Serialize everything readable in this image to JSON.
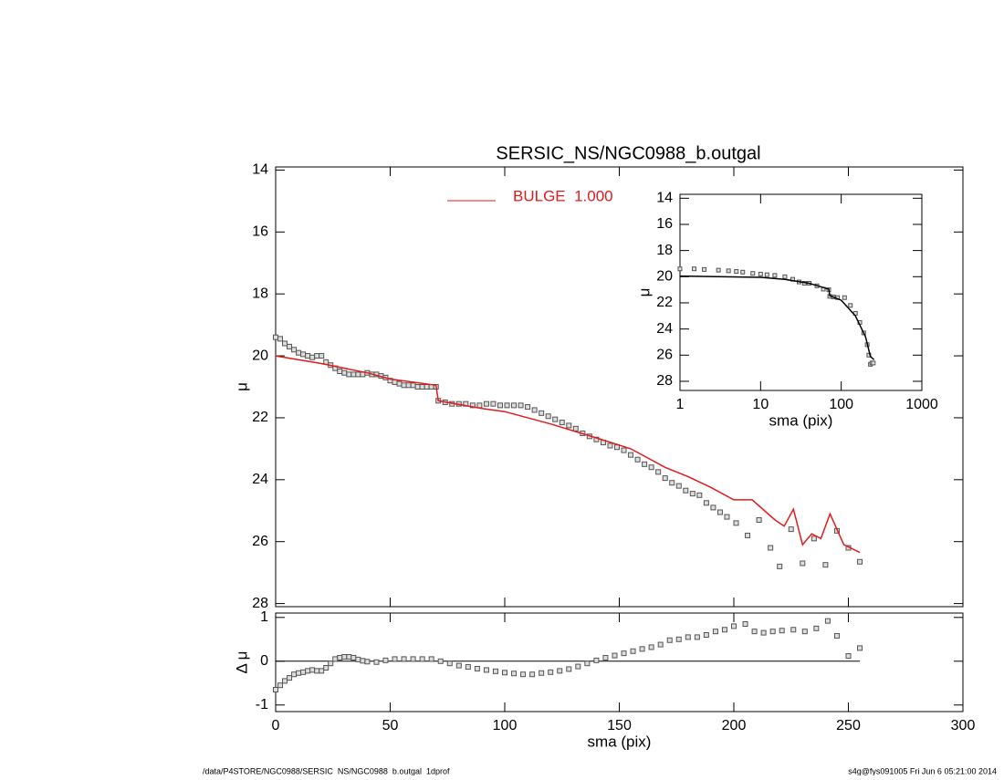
{
  "chart_data": [
    {
      "type": "scatter",
      "title": "SERSIC_NS/NGC0988_b.outgal",
      "ylabel": "μ",
      "xlim": [
        0,
        300
      ],
      "ylim": [
        13.9,
        28.1
      ],
      "yticks": [
        14,
        16,
        18,
        20,
        22,
        24,
        26,
        28
      ],
      "y_reversed": true,
      "legend": "top-center",
      "series": [
        {
          "style": "markers",
          "color": "#555555",
          "x": [
            0,
            2,
            4,
            6,
            8,
            10,
            12,
            14,
            16,
            18,
            20,
            22,
            24,
            26,
            28,
            30,
            32,
            34,
            36,
            38,
            40,
            42,
            44,
            46,
            48,
            50,
            52,
            54,
            56,
            58,
            60,
            62,
            64,
            66,
            68,
            70,
            71,
            74,
            77,
            80,
            83,
            86,
            89,
            92,
            95,
            98,
            101,
            104,
            107,
            110,
            113,
            116,
            119,
            122,
            125,
            128,
            131,
            134,
            137,
            140,
            143,
            146,
            149,
            152,
            155,
            158,
            161,
            164,
            167,
            170,
            173,
            176,
            179,
            182,
            185,
            188,
            191,
            194,
            197,
            201,
            206,
            211,
            216,
            220,
            225,
            230,
            235,
            240,
            245,
            250,
            255
          ],
          "values": [
            19.4,
            19.45,
            19.6,
            19.7,
            19.8,
            19.9,
            19.95,
            20.0,
            20.05,
            20.0,
            20.0,
            20.2,
            20.3,
            20.4,
            20.5,
            20.55,
            20.6,
            20.6,
            20.6,
            20.6,
            20.55,
            20.6,
            20.6,
            20.65,
            20.7,
            20.8,
            20.85,
            20.9,
            20.95,
            20.95,
            20.95,
            21.0,
            21.0,
            21.0,
            21.0,
            21.0,
            21.45,
            21.5,
            21.55,
            21.55,
            21.55,
            21.6,
            21.6,
            21.55,
            21.55,
            21.6,
            21.6,
            21.6,
            21.6,
            21.65,
            21.75,
            21.85,
            21.95,
            22.05,
            22.15,
            22.25,
            22.35,
            22.5,
            22.6,
            22.7,
            22.8,
            22.9,
            22.95,
            23.05,
            23.2,
            23.35,
            23.5,
            23.6,
            23.75,
            23.95,
            24.1,
            24.2,
            24.35,
            24.45,
            24.5,
            24.75,
            24.9,
            25.05,
            25.2,
            25.4,
            25.8,
            25.3,
            26.2,
            26.8,
            25.6,
            26.7,
            25.9,
            26.75,
            25.65,
            26.2,
            26.65
          ]
        },
        {
          "name": "BULGE  1.000",
          "style": "line",
          "color": "#e41a1c",
          "x": [
            0,
            20,
            40,
            50,
            70,
            71,
            90,
            100,
            120,
            140,
            155,
            170,
            180,
            190,
            200,
            208,
            218,
            222,
            226,
            230,
            234,
            238,
            242,
            248,
            255
          ],
          "values": [
            20.0,
            20.25,
            20.55,
            20.75,
            20.95,
            21.45,
            21.7,
            21.8,
            22.2,
            22.65,
            23.0,
            23.6,
            23.9,
            24.25,
            24.65,
            24.65,
            25.3,
            25.5,
            24.95,
            26.1,
            25.75,
            25.9,
            25.1,
            26.1,
            26.35
          ]
        }
      ]
    },
    {
      "type": "scatter",
      "xlabel": "sma (pix)",
      "ylabel": "Δ μ",
      "xlim": [
        0,
        300
      ],
      "xticks": [
        0,
        50,
        100,
        150,
        200,
        250,
        300
      ],
      "ylim": [
        -1.15,
        1.1
      ],
      "yticks": [
        -1,
        0,
        1
      ],
      "hline": {
        "y": 0,
        "x": [
          0,
          255
        ]
      },
      "series": [
        {
          "style": "markers",
          "color": "#555555",
          "x": [
            0,
            2,
            4,
            6,
            8,
            10,
            12,
            14,
            16,
            18,
            20,
            22,
            24,
            26,
            28,
            30,
            32,
            34,
            36,
            38,
            40,
            44,
            48,
            52,
            56,
            60,
            64,
            68,
            72,
            76,
            80,
            84,
            88,
            92,
            96,
            100,
            104,
            108,
            112,
            116,
            120,
            124,
            128,
            132,
            136,
            140,
            144,
            148,
            152,
            156,
            160,
            164,
            168,
            172,
            176,
            180,
            184,
            188,
            192,
            196,
            200,
            205,
            209,
            213,
            217,
            221,
            226,
            231,
            236,
            241,
            245,
            250,
            255
          ],
          "values": [
            -0.65,
            -0.55,
            -0.45,
            -0.38,
            -0.3,
            -0.27,
            -0.25,
            -0.22,
            -0.2,
            -0.22,
            -0.22,
            -0.15,
            -0.05,
            0.05,
            0.08,
            0.1,
            0.1,
            0.08,
            0.04,
            0.01,
            -0.01,
            -0.02,
            0.02,
            0.05,
            0.05,
            0.05,
            0.05,
            0.05,
            0.0,
            -0.05,
            -0.1,
            -0.13,
            -0.17,
            -0.2,
            -0.23,
            -0.26,
            -0.28,
            -0.3,
            -0.3,
            -0.27,
            -0.25,
            -0.22,
            -0.18,
            -0.12,
            -0.05,
            0.02,
            0.08,
            0.13,
            0.18,
            0.23,
            0.28,
            0.32,
            0.38,
            0.48,
            0.5,
            0.55,
            0.55,
            0.6,
            0.68,
            0.72,
            0.8,
            0.85,
            0.68,
            0.65,
            0.68,
            0.7,
            0.72,
            0.68,
            0.75,
            0.92,
            0.58,
            0.12,
            0.3
          ]
        }
      ]
    },
    {
      "type": "scatter",
      "xlabel": "sma (pix)",
      "ylabel": "μ",
      "log_x": true,
      "xlim": [
        1,
        1000
      ],
      "xticks": [
        1,
        10,
        100,
        1000
      ],
      "ylim": [
        13.7,
        28.7
      ],
      "yticks": [
        14,
        16,
        18,
        20,
        22,
        24,
        26,
        28
      ],
      "y_reversed": true,
      "series": [
        {
          "style": "markers",
          "color": "#555555",
          "x": [
            1,
            1.5,
            2,
            3,
            4,
            5,
            6,
            8,
            10,
            12,
            15,
            20,
            25,
            30,
            35,
            40,
            50,
            60,
            70,
            72,
            80,
            90,
            110,
            130,
            150,
            170,
            190,
            210,
            220,
            230,
            240,
            250
          ],
          "values": [
            19.4,
            19.4,
            19.45,
            19.5,
            19.55,
            19.6,
            19.65,
            19.75,
            19.8,
            19.85,
            19.9,
            20.0,
            20.2,
            20.4,
            20.5,
            20.5,
            20.7,
            20.95,
            21.0,
            21.5,
            21.55,
            21.6,
            21.6,
            22.2,
            22.8,
            23.5,
            24.3,
            25.2,
            26.0,
            26.7,
            26.6,
            26.6
          ]
        },
        {
          "style": "line",
          "color": "#000000",
          "x": [
            1,
            10,
            20,
            40,
            70,
            72,
            100,
            150,
            200,
            230,
            255
          ],
          "values": [
            19.95,
            20.05,
            20.2,
            20.5,
            20.95,
            21.45,
            21.8,
            23.0,
            24.6,
            26.1,
            26.35
          ]
        }
      ]
    }
  ],
  "footer": {
    "left": "/data/P4STORE/NGC0988/SERSIC_NS/NGC0988_b.outgal_1dprof",
    "right": "s4g@fys091005  Fri Jun  6 05:21:00 2014"
  }
}
